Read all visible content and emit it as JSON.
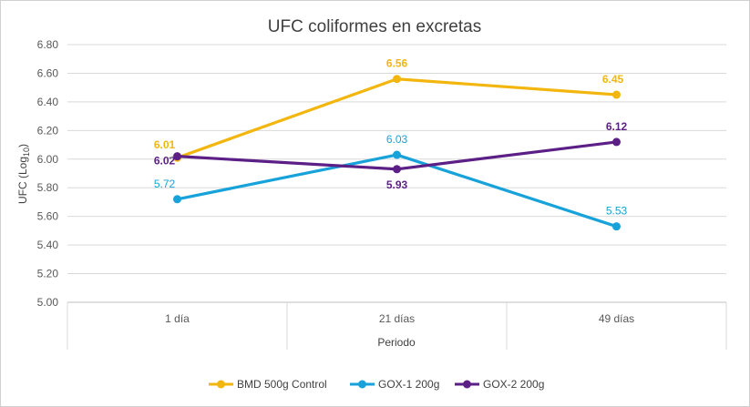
{
  "chart_data": {
    "type": "line",
    "title": "UFC coliformes  en excretas",
    "xlabel": "Periodo",
    "ylabel_main": "UFC (Log",
    "ylabel_sub": "10",
    "ylabel_end": ")",
    "categories": [
      "1 día",
      "21 días",
      "49 días"
    ],
    "ylim": [
      5.0,
      6.8
    ],
    "yticks": [
      "5.00",
      "5.20",
      "5.40",
      "5.60",
      "5.80",
      "6.00",
      "6.20",
      "6.40",
      "6.60",
      "6.80"
    ],
    "grid": true,
    "legend_position": "bottom",
    "series": [
      {
        "name": "BMD 500g Control",
        "color": "#F2B60F",
        "values": [
          6.01,
          6.56,
          6.45
        ],
        "labels": [
          "6.01",
          "6.56",
          "6.45"
        ],
        "label_bold": true
      },
      {
        "name": "GOX-1 200g",
        "color": "#17A2D9",
        "values": [
          5.72,
          6.03,
          5.53
        ],
        "labels": [
          "5.72",
          "6.03",
          "5.53"
        ],
        "label_bold": false
      },
      {
        "name": "GOX-2 200g",
        "color": "#5B1F86",
        "values": [
          6.02,
          5.93,
          6.12
        ],
        "labels": [
          "6.02",
          "5.93",
          "6.12"
        ],
        "label_bold": true
      }
    ]
  }
}
